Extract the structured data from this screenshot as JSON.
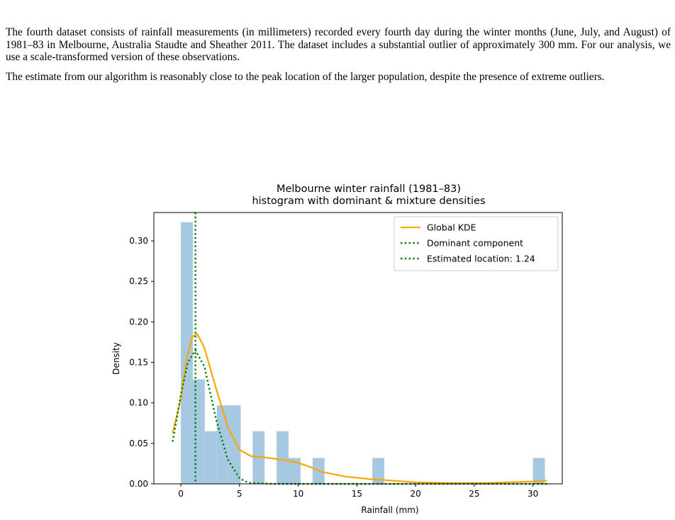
{
  "paragraphs": [
    "The fourth dataset consists of rainfall measurements (in millimeters) recorded every fourth day during the winter months (June, July, and August) of 1981–83 in Melbourne, Australia Staudte and Sheather 2011. The dataset includes a substantial outlier of approximately 300 mm. For our analysis, we use a scale-transformed version of these observations.",
    "The estimate from our algorithm is reasonably close to the peak location of the larger population, despite the presence of extreme outliers."
  ],
  "chart_data": {
    "type": "bar",
    "title": "Melbourne winter rainfall (1981–83)",
    "subtitle": "histogram with dominant & mixture densities",
    "xlabel": "Rainfall (mm)",
    "ylabel": "Density",
    "xlim": [
      -2.3,
      32.5
    ],
    "ylim": [
      0,
      0.335
    ],
    "xticks": [
      0,
      5,
      10,
      15,
      20,
      25,
      30
    ],
    "yticks": [
      0.0,
      0.05,
      0.1,
      0.15,
      0.2,
      0.25,
      0.3
    ],
    "ytick_labels": [
      "0.00",
      "0.05",
      "0.10",
      "0.15",
      "0.20",
      "0.25",
      "0.30"
    ],
    "legend_position": "top-right",
    "histogram": {
      "color": "#a6c8e0",
      "bin_width": 1.02,
      "bins": [
        {
          "x0": 0.0,
          "density": 0.323
        },
        {
          "x0": 1.02,
          "density": 0.129
        },
        {
          "x0": 2.04,
          "density": 0.065
        },
        {
          "x0": 3.06,
          "density": 0.097
        },
        {
          "x0": 4.08,
          "density": 0.097
        },
        {
          "x0": 6.12,
          "density": 0.065
        },
        {
          "x0": 8.16,
          "density": 0.065
        },
        {
          "x0": 9.18,
          "density": 0.032
        },
        {
          "x0": 11.22,
          "density": 0.032
        },
        {
          "x0": 16.32,
          "density": 0.032
        },
        {
          "x0": 30.0,
          "density": 0.032
        }
      ]
    },
    "series": [
      {
        "name": "Global KDE",
        "style": "solid",
        "color": "#ffa500",
        "x": [
          -0.7,
          0.0,
          0.5,
          1.0,
          1.4,
          2.0,
          3.0,
          4.0,
          5.0,
          6.0,
          7.0,
          8.0,
          9.0,
          10.0,
          11.0,
          12.0,
          14.0,
          16.0,
          18.0,
          20.0,
          23.0,
          26.0,
          28.0,
          30.0,
          31.2
        ],
        "y": [
          0.063,
          0.105,
          0.155,
          0.182,
          0.185,
          0.168,
          0.118,
          0.07,
          0.042,
          0.034,
          0.033,
          0.031,
          0.029,
          0.026,
          0.021,
          0.015,
          0.009,
          0.006,
          0.004,
          0.002,
          0.001,
          0.001,
          0.002,
          0.003,
          0.004
        ]
      },
      {
        "name": "Dominant component",
        "style": "dotted",
        "color": "#008000",
        "x": [
          -0.7,
          0.0,
          0.6,
          1.24,
          2.0,
          3.0,
          4.0,
          5.0,
          5.5,
          6.0,
          8.0,
          31.2
        ],
        "y": [
          0.052,
          0.11,
          0.15,
          0.165,
          0.145,
          0.08,
          0.03,
          0.007,
          0.003,
          0.001,
          0.0,
          0.0
        ]
      }
    ],
    "vline": {
      "name": "Estimated location: 1.24",
      "x": 1.24,
      "style": "dotted",
      "color": "#008000"
    }
  }
}
